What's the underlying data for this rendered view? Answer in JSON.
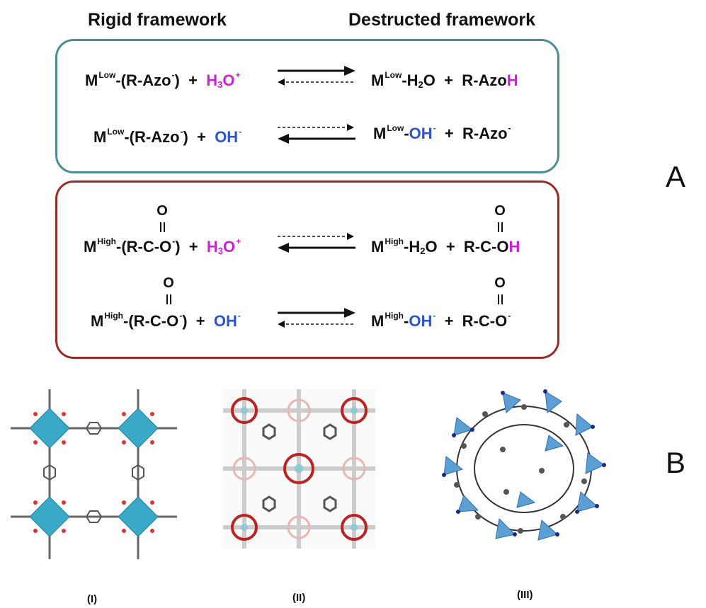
{
  "headers": {
    "left": "Rigid framework",
    "right": "Destructed framework"
  },
  "section_labels": {
    "a": "A",
    "b": "B"
  },
  "colors": {
    "low_panel": "#4a8c98",
    "high_panel": "#9a2a24",
    "magenta": "#cc1fd6",
    "blue": "#2d56c8",
    "node_blue": "#3aa9c8"
  },
  "panel_low": {
    "eq1": {
      "metal": "M",
      "sup": "Low",
      "ligand": "-(R-Azo",
      "lig_sup": "-",
      "close": ")",
      "plus": "+",
      "reagent": "H",
      "reagent_sub": "3",
      "reagent_o": "O",
      "reagent_sup": "+",
      "prod_metal": "M",
      "prod_sup": "Low",
      "prod_water": "-H",
      "prod_water_sub": "2",
      "prod_water_o": "O",
      "prod_plus": "+",
      "prod_lig": "R-Azo",
      "prod_h": "H"
    },
    "eq2": {
      "metal": "M",
      "sup": "Low",
      "ligand": "-(R-Azo",
      "lig_sup": "-",
      "close": ")",
      "plus": "+",
      "reagent": "OH",
      "reagent_sup": "-",
      "prod_metal": "M",
      "prod_sup": "Low",
      "prod_dash": "-",
      "prod_oh": "OH",
      "prod_oh_sup": "-",
      "prod_plus": "+",
      "prod_lig": "R-Azo",
      "prod_lig_sup": "-"
    }
  },
  "panel_high": {
    "eq1": {
      "metal": "M",
      "sup": "High",
      "ligand": "-(R-C-O",
      "lig_sup": "-",
      "close": ")",
      "plus": "+",
      "reagent": "H",
      "reagent_sub": "3",
      "reagent_o": "O",
      "reagent_sup": "+",
      "prod_metal": "M",
      "prod_sup": "High",
      "prod_water": "-H",
      "prod_water_sub": "2",
      "prod_water_o": "O",
      "prod_plus": "+",
      "prod_lig": "R-C-O",
      "prod_h": "H",
      "carbonyl": "O"
    },
    "eq2": {
      "metal": "M",
      "sup": "High",
      "ligand": "-(R-C-O",
      "lig_sup": "-",
      "close": ")",
      "plus": "+",
      "reagent": "OH",
      "reagent_sup": "-",
      "prod_metal": "M",
      "prod_sup": "High",
      "prod_dash": "-",
      "prod_oh": "OH",
      "prod_oh_sup": "-",
      "prod_plus": "+",
      "prod_lig": "R-C-O",
      "prod_lig_sup": "-",
      "carbonyl": "O"
    }
  },
  "captions": {
    "i": "(I)",
    "ii": "(II)",
    "iii": "(III)"
  }
}
